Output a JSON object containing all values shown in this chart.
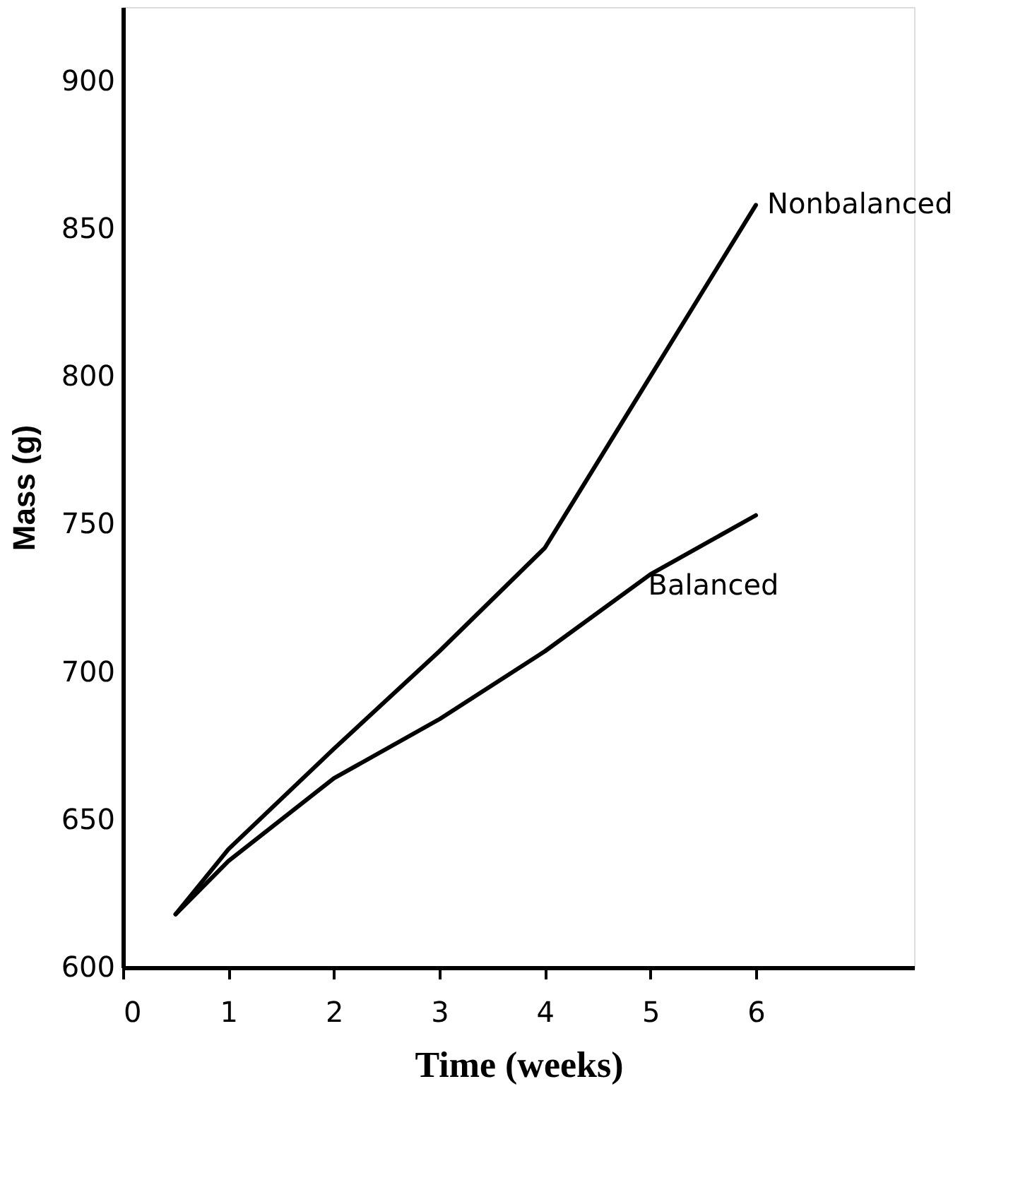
{
  "chart_data": {
    "type": "line",
    "xlabel": "Time (weeks)",
    "ylabel": "Mass (g)",
    "xlim": [
      0,
      7.5
    ],
    "xticks": [
      0,
      1,
      2,
      3,
      4,
      5,
      6
    ],
    "ylim": [
      600,
      925
    ],
    "yticks": [
      600,
      650,
      700,
      750,
      800,
      850,
      900
    ],
    "grid": false,
    "legend": false,
    "marker": "none",
    "line_style": "solid",
    "series": [
      {
        "name": "Nonbalanced",
        "color": "#000000",
        "x": [
          0.5,
          1,
          2,
          3,
          4,
          5,
          6
        ],
        "values": [
          618,
          640,
          674,
          707,
          742,
          800,
          858
        ]
      },
      {
        "name": "Balanced",
        "color": "#000000",
        "x": [
          0.5,
          1,
          2,
          3,
          4,
          5,
          6
        ],
        "values": [
          618,
          636,
          664,
          684,
          707,
          733,
          753
        ]
      }
    ]
  }
}
